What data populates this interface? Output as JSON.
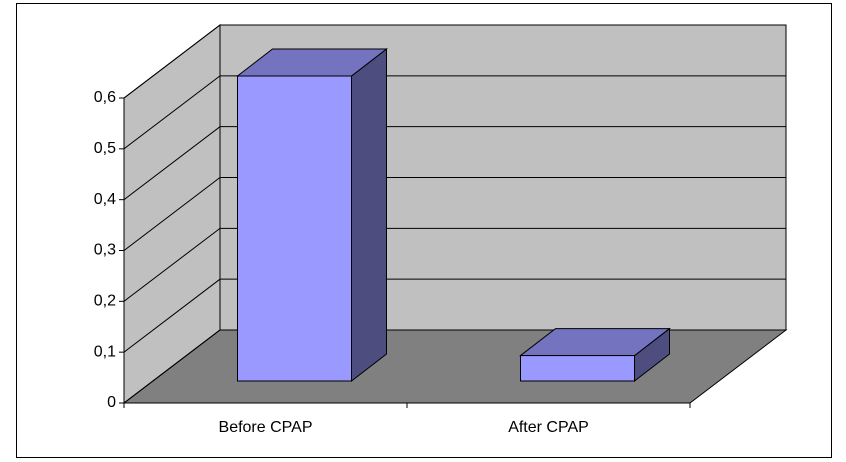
{
  "chart_data": {
    "type": "bar3d",
    "categories": [
      "Before CPAP",
      "After CPAP"
    ],
    "values": [
      0.6,
      0.05
    ],
    "color": "#9999ff",
    "ylim": [
      0,
      0.6
    ],
    "yticks": [
      {
        "value": 0,
        "label": "0"
      },
      {
        "value": 0.1,
        "label": "0,1"
      },
      {
        "value": 0.2,
        "label": "0,2"
      },
      {
        "value": 0.3,
        "label": "0,3"
      },
      {
        "value": 0.4,
        "label": "0,4"
      },
      {
        "value": 0.5,
        "label": "0,5"
      },
      {
        "value": 0.6,
        "label": "0,6"
      }
    ],
    "grid": true
  }
}
